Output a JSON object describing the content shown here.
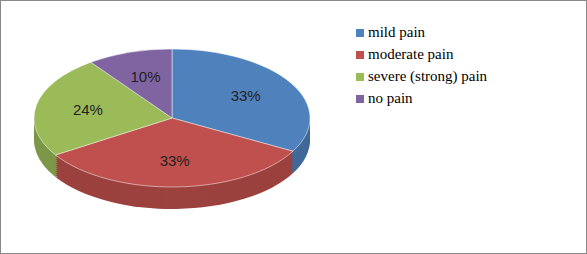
{
  "chart_data": {
    "type": "pie",
    "categories": [
      "mild pain",
      "moderate pain",
      "severe (strong) pain",
      "no pain"
    ],
    "values": [
      33,
      33,
      24,
      10
    ],
    "value_labels": [
      "33%",
      "33%",
      "24%",
      "10%"
    ],
    "colors": [
      "#4f81bd",
      "#c0504d",
      "#9bbb59",
      "#8064a2"
    ],
    "data_labels": true,
    "legend": "right"
  }
}
